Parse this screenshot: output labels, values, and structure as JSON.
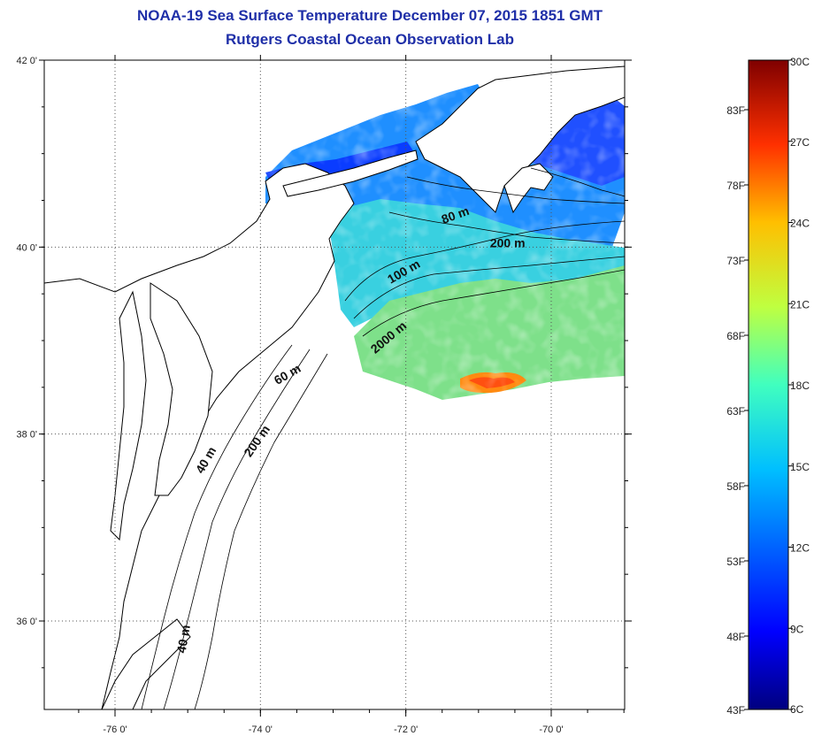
{
  "header": {
    "title": "NOAA-19 Sea Surface Temperature December 07, 2015 1851 GMT",
    "subtitle": "Rutgers Coastal Ocean Observation Lab"
  },
  "axes": {
    "x_ticks": [
      {
        "value": -76,
        "label": "-76 0'"
      },
      {
        "value": -74,
        "label": "-74 0'"
      },
      {
        "value": -72,
        "label": "-72 0'"
      },
      {
        "value": -70,
        "label": "-70 0'"
      }
    ],
    "y_ticks": [
      {
        "value": 42,
        "label": "42 0'"
      },
      {
        "value": 40,
        "label": "40 0'"
      },
      {
        "value": 38,
        "label": "38 0'"
      },
      {
        "value": 36,
        "label": "36 0'"
      }
    ],
    "lon_range": [
      -77,
      -69
    ],
    "lat_range": [
      35,
      42
    ],
    "grid": true
  },
  "contour_labels": [
    {
      "text": "200 m",
      "lon": -74.0,
      "lat": 37.9,
      "rotate": -55
    },
    {
      "text": "40 m",
      "lon": -74.7,
      "lat": 37.7,
      "rotate": -60
    },
    {
      "text": "60 m",
      "lon": -73.6,
      "lat": 38.6,
      "rotate": -30
    },
    {
      "text": "2000 m",
      "lon": -72.2,
      "lat": 39.0,
      "rotate": -40
    },
    {
      "text": "100 m",
      "lon": -72.0,
      "lat": 39.7,
      "rotate": -30
    },
    {
      "text": "80 m",
      "lon": -71.3,
      "lat": 40.3,
      "rotate": -20
    },
    {
      "text": "200 m",
      "lon": -70.6,
      "lat": 40.0,
      "rotate": 0
    },
    {
      "text": "40 m",
      "lon": -75.0,
      "lat": 35.8,
      "rotate": -80
    }
  ],
  "colorbar": {
    "min_c": 6,
    "max_c": 30,
    "celsius_labels": [
      "30C",
      "27C",
      "24C",
      "21C",
      "18C",
      "15C",
      "12C",
      "9C",
      "6C"
    ],
    "fahrenheit_labels": [
      "83F",
      "78F",
      "73F",
      "68F",
      "63F",
      "58F",
      "53F",
      "48F",
      "43F"
    ],
    "colors": [
      "#000080",
      "#0000ff",
      "#0080ff",
      "#00ffff",
      "#80ff80",
      "#ffff00",
      "#ff8000",
      "#ff0000",
      "#800000"
    ]
  },
  "colors": {
    "title": "#1f2fa8",
    "coast": "#000000",
    "grid": "#555555"
  }
}
